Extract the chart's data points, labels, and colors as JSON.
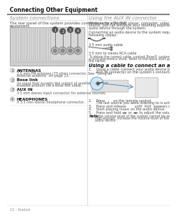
{
  "bg_color": "#ffffff",
  "title": "Connecting Other Equipment",
  "left_section_title": "System connections",
  "left_body1": "The rear panel of the system provides connections for external",
  "left_body2": "equipment.",
  "right_section_title": "Using the AUX IN connector",
  "right_body": [
    "When using a TV, DVD player, computer, video game or other audio",
    "source, you can enhance your listening experience by playing the",
    "audio device through the system.",
    "",
    "Connecting an audio device to the system requires one of the",
    "following cables:"
  ],
  "cable1_label": "3.5 mm audio cable",
  "cable2_label": "3.5 mm to stereo RCA cable",
  "cable_note": [
    "To obtain the correct cable, contact Bose® customer service or visit",
    "a local electronics store. Refer to the quick start guide in",
    "the carton."
  ],
  "connect_title": "Using a cable to connect an audio device",
  "step1_a": "1.    Using a cable, connect your audio device to the",
  "step1_b": "       AUX IN connector on the system’s connector panel.",
  "step2_a": "2.    Press        on the remote control.",
  "step2_b": "       The last source you were listening to is active.",
  "step3": "3.    Press and release        until  AUX  appears on the display.",
  "step4": "4.    Start playing music on the audio device.",
  "step5": "5.    Press and hold ◄► or ◄► to adjust the volume.",
  "note_label": "Note:",
  "note_text": [
    "If the volume level of the system cannot be adjusted",
    "high enough, increase the volume level of the connected",
    "audio device."
  ],
  "items": [
    {
      "num": "1",
      "title": "ANTENNAS",
      "desc1": "3.5 mm FM antenna (75 ohm) connector. See “Using an",
      "desc2": "external antenna” on page 13."
    },
    {
      "num": "2",
      "title": "Bose link",
      "desc1": "An input that accepts the output of another Bose link",
      "desc2": "enabled product via a Bose link cable."
    },
    {
      "num": "3",
      "title": "AUX IN",
      "desc1": "3.5 mm stereo input connector for external sources.",
      "desc2": ""
    },
    {
      "num": "4",
      "title": "HEADPHONES",
      "desc1": "A 3.5 mm stereo headphone connector.",
      "desc2": ""
    }
  ],
  "page_label": "12 – English",
  "col_div": 148
}
